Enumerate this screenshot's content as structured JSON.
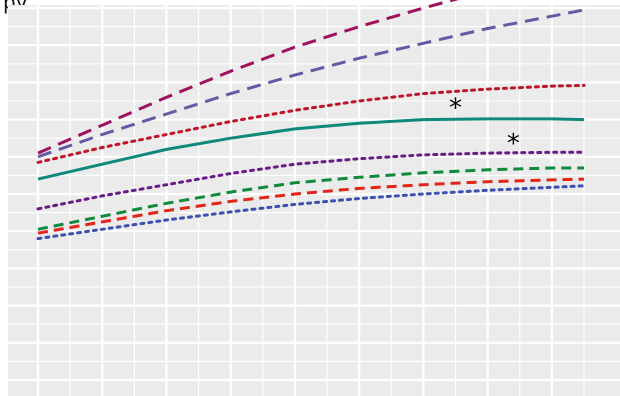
{
  "page": {
    "title_fragment": "py"
  },
  "chart_data": {
    "type": "line",
    "title": "",
    "xlabel": "",
    "ylabel": "",
    "xlim": [
      0,
      17
    ],
    "ylim": [
      0,
      10
    ],
    "grid": true,
    "legend": "none",
    "colors": {
      "background": "#ebebeb",
      "grid": "#ffffff"
    },
    "series": [
      {
        "color": "#a0125e",
        "style": "longdash",
        "x": [
          0,
          2,
          4,
          6,
          8,
          10,
          12,
          13.5
        ],
        "y": [
          6.1,
          6.85,
          7.6,
          8.3,
          8.95,
          9.5,
          10.0,
          10.35
        ]
      },
      {
        "color": "#6459a3",
        "style": "longdash",
        "x": [
          0,
          2,
          4,
          6,
          8,
          10,
          12,
          14,
          16,
          17
        ],
        "y": [
          6.0,
          6.6,
          7.15,
          7.7,
          8.2,
          8.65,
          9.05,
          9.45,
          9.78,
          9.95
        ]
      },
      {
        "color": "#c0142b",
        "style": "dotted",
        "x": [
          0,
          2,
          4,
          6,
          8,
          10,
          12,
          14,
          16,
          17
        ],
        "y": [
          5.85,
          6.25,
          6.6,
          6.95,
          7.25,
          7.5,
          7.7,
          7.82,
          7.9,
          7.92
        ]
      },
      {
        "color": "#0f8a7a",
        "style": "solid",
        "x": [
          0,
          2,
          4,
          6,
          8,
          10,
          12,
          14,
          16,
          17
        ],
        "y": [
          5.4,
          5.8,
          6.2,
          6.5,
          6.75,
          6.9,
          7.0,
          7.02,
          7.02,
          7.0
        ],
        "annotations": [
          {
            "x": 13,
            "y": 7.4,
            "text": "*"
          }
        ]
      },
      {
        "color": "#6a1b8a",
        "style": "dotted",
        "x": [
          0,
          2,
          4,
          6,
          8,
          10,
          12,
          14,
          16,
          17
        ],
        "y": [
          4.6,
          4.95,
          5.25,
          5.55,
          5.8,
          5.95,
          6.05,
          6.1,
          6.12,
          6.12
        ],
        "annotations": [
          {
            "x": 14.8,
            "y": 6.45,
            "text": "*"
          }
        ]
      },
      {
        "color": "#0d8a3c",
        "style": "dashed",
        "x": [
          0,
          2,
          4,
          6,
          8,
          10,
          12,
          14,
          16,
          17
        ],
        "y": [
          4.05,
          4.4,
          4.75,
          5.05,
          5.3,
          5.45,
          5.57,
          5.65,
          5.7,
          5.7
        ]
      },
      {
        "color": "#e3241b",
        "style": "dashed",
        "x": [
          0,
          2,
          4,
          6,
          8,
          10,
          12,
          14,
          16,
          17
        ],
        "y": [
          3.95,
          4.25,
          4.55,
          4.8,
          5.0,
          5.15,
          5.25,
          5.33,
          5.38,
          5.4
        ]
      },
      {
        "color": "#3d4fb0",
        "style": "dotted",
        "x": [
          0,
          2,
          4,
          6,
          8,
          10,
          12,
          14,
          16,
          17
        ],
        "y": [
          3.8,
          4.05,
          4.3,
          4.52,
          4.72,
          4.88,
          5.0,
          5.1,
          5.18,
          5.22
        ]
      }
    ]
  }
}
